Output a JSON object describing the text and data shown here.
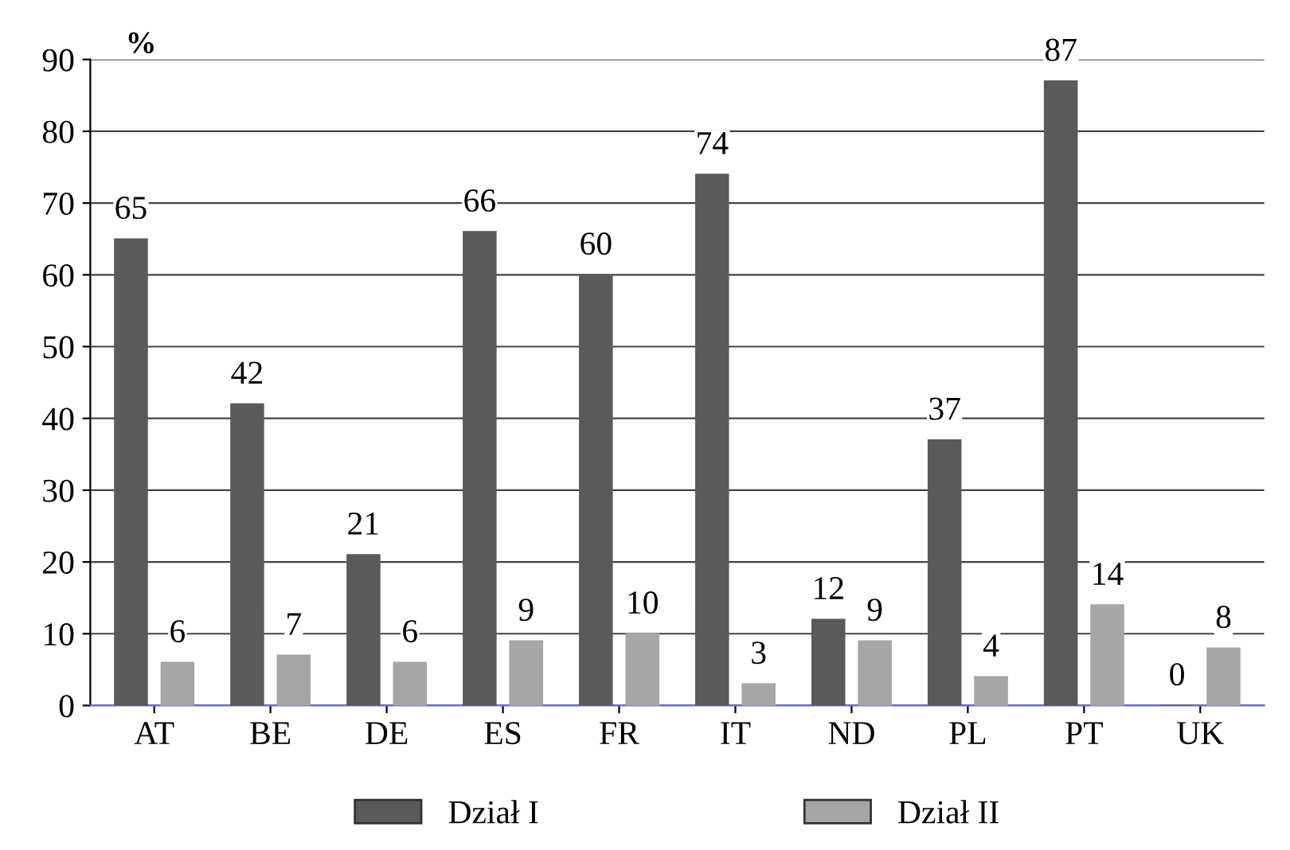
{
  "chart_data": {
    "type": "bar",
    "ylabel": "%",
    "categories": [
      "AT",
      "BE",
      "DE",
      "ES",
      "FR",
      "IT",
      "ND",
      "PL",
      "PT",
      "UK"
    ],
    "series": [
      {
        "name": "Dział I",
        "color": "#5a5a5a",
        "values": [
          65,
          42,
          21,
          66,
          60,
          74,
          12,
          37,
          87,
          0
        ]
      },
      {
        "name": "Dział II",
        "color": "#a6a6a6",
        "values": [
          6,
          7,
          6,
          9,
          10,
          3,
          9,
          4,
          14,
          8
        ]
      }
    ],
    "ylim": [
      0,
      90
    ],
    "yticks": [
      0,
      10,
      20,
      30,
      40,
      50,
      60,
      70,
      80,
      90
    ],
    "grid": "y",
    "legend": "bottom",
    "data_labels": true
  }
}
